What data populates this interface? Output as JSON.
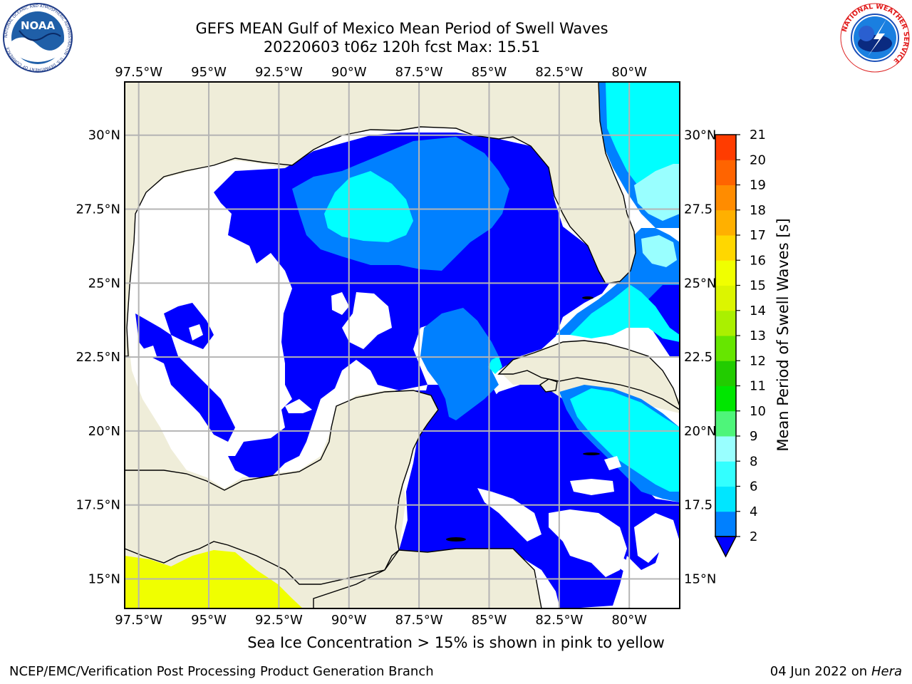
{
  "header": {
    "title_line1": "GEFS MEAN Gulf of Mexico Mean Period of Swell Waves",
    "title_line2": "20220603 t06z 120h fcst   Max: 15.51"
  },
  "logos": {
    "noaa_text": "NOAA",
    "noaa_ring_text": "NATIONAL OCEANIC AND ATMOSPHERIC ADMINISTRATION · U.S. DEPARTMENT OF COMMERCE",
    "nws_ring_text": "NATIONAL WEATHER SERVICE"
  },
  "map": {
    "lon_labels": [
      "97.5°W",
      "95°W",
      "92.5°W",
      "90°W",
      "87.5°W",
      "85°W",
      "82.5°W",
      "80°W"
    ],
    "lon_values": [
      -97.5,
      -95,
      -92.5,
      -90,
      -87.5,
      -85,
      -82.5,
      -80
    ],
    "lat_labels_left": [
      "30°N",
      "27.5°N",
      "25°N",
      "22.5°N",
      "20°N",
      "17.5°N",
      "15°N"
    ],
    "lat_labels_right": [
      "30°N",
      "27.5",
      "25°N",
      "22.5",
      "20°N",
      "17.5",
      "15°N"
    ],
    "lat_values": [
      30,
      27.5,
      25,
      22.5,
      20,
      17.5,
      15
    ],
    "extent": {
      "lon_min": -98,
      "lon_max": -78.2,
      "lat_min": 14,
      "lat_max": 31.8
    },
    "colors": {
      "land": "#efedd9",
      "ocean_white": "#ffffff",
      "period_2_4": "#0000ff",
      "period_4_6": "#0080ff",
      "period_6_8": "#00ffff",
      "period_8_9": "#66ffff",
      "ice": "#f0ff00",
      "grid": "#b4b4b4"
    }
  },
  "colorbar": {
    "label": "Mean Period of Swell Waves [s]",
    "ticks": [
      "2",
      "4",
      "6",
      "8",
      "9",
      "10",
      "11",
      "12",
      "13",
      "14",
      "15",
      "16",
      "17",
      "18",
      "19",
      "20",
      "21"
    ],
    "colors": [
      "#0080ff",
      "#00e6ff",
      "#33ffff",
      "#99ffff",
      "#4ef57a",
      "#00e600",
      "#22cc00",
      "#66e600",
      "#aaf000",
      "#dcf500",
      "#f0ff00",
      "#ffd700",
      "#ffb000",
      "#ff8c00",
      "#ff6400",
      "#ff3c00",
      "#ff1400"
    ],
    "under_color": "#0000ff"
  },
  "notes": {
    "ice_note": "Sea Ice Concentration > 15% is shown in pink to yellow",
    "footer_left": "NCEP/EMC/Verification Post Processing Product Generation Branch",
    "footer_date": "04 Jun 2022 on",
    "footer_host": "Hera"
  }
}
